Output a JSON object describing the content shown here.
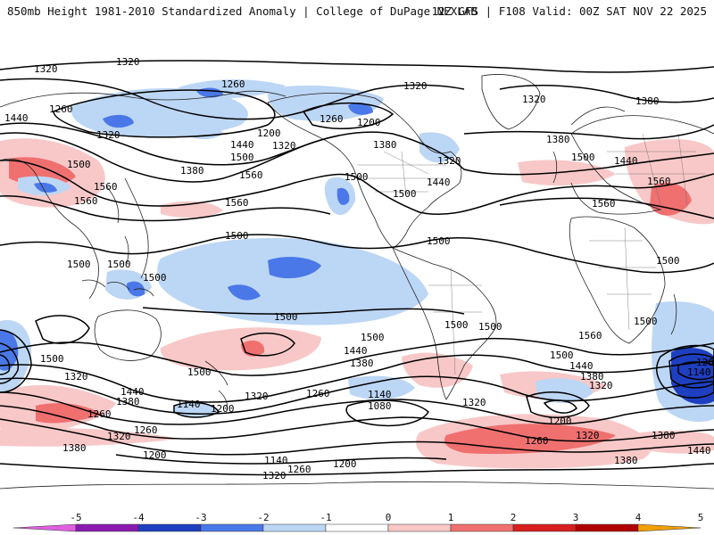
{
  "header": {
    "title": "850mb Height 1981-2010 Standardized Anomaly | College of DuPage NEXLAB",
    "run_info": "12Z GFS | F108 Valid: 00Z SAT NOV 22 2025"
  },
  "map": {
    "contour_labels": [
      "1320",
      "1260",
      "1320",
      "1440",
      "1500",
      "1560",
      "1380",
      "1200",
      "1140",
      "1080"
    ],
    "anomaly_colors": {
      "neg5": "#e060e0",
      "neg4": "#8a1ab0",
      "neg3": "#1e3fc0",
      "neg2": "#4a78e8",
      "neg1": "#bcd6f5",
      "zero": "#ffffff",
      "pos1": "#f8c8c8",
      "pos2": "#f07070",
      "pos3": "#d81e1e",
      "pos4": "#b00000",
      "pos5": "#f0a000"
    }
  },
  "colorbar": {
    "ticks": [
      "-5",
      "-4",
      "-3",
      "-2",
      "-1",
      "0",
      "1",
      "2",
      "3",
      "4",
      "5"
    ],
    "colors": [
      "#e060e0",
      "#8a1ab0",
      "#1e3fc0",
      "#4a78e8",
      "#bcd6f5",
      "#ffffff",
      "#f8c8c8",
      "#f07070",
      "#d81e1e",
      "#b00000",
      "#f0a000"
    ]
  }
}
